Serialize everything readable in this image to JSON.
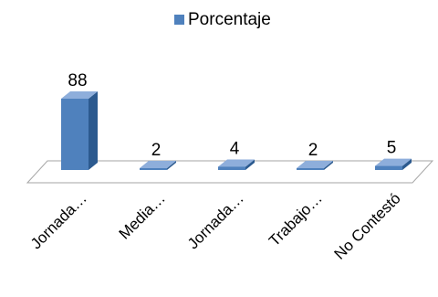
{
  "chart_data": {
    "type": "bar",
    "categories": [
      "Jornada…",
      "Media…",
      "Jornada…",
      "Trabajo…",
      "No Contestó"
    ],
    "series": [
      {
        "name": "Porcentaje",
        "values": [
          88,
          2,
          4,
          2,
          5
        ]
      }
    ],
    "data_labels": [
      "88",
      "2",
      "4",
      "2",
      "5"
    ],
    "ylim": [
      0,
      100
    ],
    "grid": false,
    "legend_position": "top",
    "bar_style": "3d",
    "colors": {
      "bar_front": "#4f81bd",
      "bar_side": "#2c5a8f",
      "bar_top": "#8eaedb",
      "floor_stroke": "#a6a6a6",
      "floor_fill": "#ffffff"
    }
  }
}
